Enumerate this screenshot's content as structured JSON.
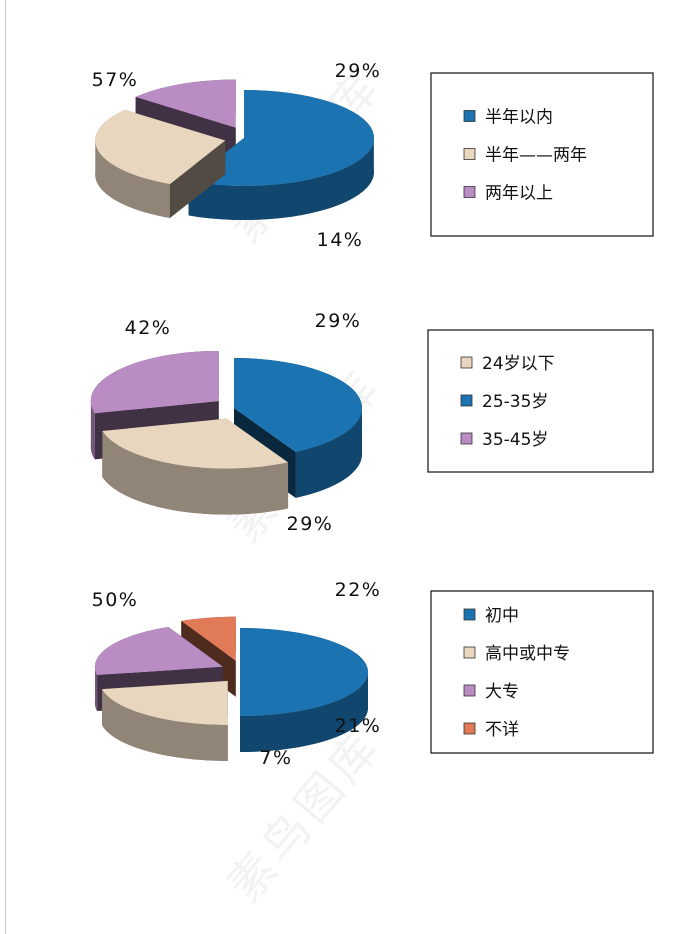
{
  "colors": {
    "blue": "#1b73b2",
    "tan": "#e8d6be",
    "purple": "#b98cc3",
    "orange": "#e07a57"
  },
  "watermark": "素鸟图库",
  "chart_data": [
    {
      "type": "pie",
      "slices": [
        {
          "label": "半年以内",
          "value": 57,
          "value_label": "57%",
          "color": "blue"
        },
        {
          "label": "半年——两年",
          "value": 29,
          "value_label": "29%",
          "color": "tan"
        },
        {
          "label": "两年以上",
          "value": 14,
          "value_label": "14%",
          "color": "purple"
        }
      ],
      "legend_order": [
        0,
        1,
        2
      ],
      "legend_position": "right"
    },
    {
      "type": "pie",
      "slices": [
        {
          "label": "25-35岁",
          "value": 42,
          "value_label": "42%",
          "color": "blue"
        },
        {
          "label": "24岁以下",
          "value": 29,
          "value_label": "29%",
          "color": "tan"
        },
        {
          "label": "35-45岁",
          "value": 29,
          "value_label": "29%",
          "color": "purple"
        }
      ],
      "legend_order": [
        1,
        0,
        2
      ],
      "legend_position": "right"
    },
    {
      "type": "pie",
      "slices": [
        {
          "label": "初中",
          "value": 50,
          "value_label": "50%",
          "color": "blue"
        },
        {
          "label": "高中或中专",
          "value": 22,
          "value_label": "22%",
          "color": "tan"
        },
        {
          "label": "大专",
          "value": 21,
          "value_label": "21%",
          "color": "purple"
        },
        {
          "label": "不详",
          "value": 7,
          "value_label": "7%",
          "color": "orange"
        }
      ],
      "legend_order": [
        0,
        1,
        2,
        3
      ],
      "legend_position": "right"
    }
  ]
}
